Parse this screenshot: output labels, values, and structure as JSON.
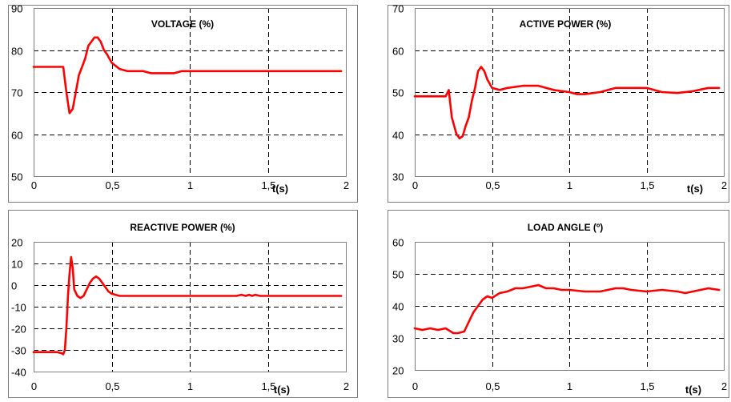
{
  "chart_data": [
    {
      "type": "line",
      "title": "VOLTAGE (%)",
      "xlabel": "t(s)",
      "ylabel": "",
      "xlim": [
        0,
        2
      ],
      "ylim": [
        50,
        90
      ],
      "xticks": [
        "0",
        "0,5",
        "1",
        "1,5",
        "2"
      ],
      "yticks": [
        "50",
        "60",
        "70",
        "80",
        "90"
      ],
      "grid": true,
      "series": [
        {
          "color": "#ff0000",
          "x": [
            0,
            0.19,
            0.21,
            0.23,
            0.25,
            0.27,
            0.29,
            0.31,
            0.33,
            0.35,
            0.37,
            0.39,
            0.41,
            0.43,
            0.45,
            0.47,
            0.5,
            0.55,
            0.6,
            0.65,
            0.7,
            0.75,
            0.8,
            0.85,
            0.9,
            0.95,
            1.0,
            1.5,
            1.97
          ],
          "y": [
            76,
            76,
            70,
            65,
            66,
            70,
            74,
            76,
            78,
            81,
            82,
            83,
            83,
            82,
            80,
            79,
            77,
            75.5,
            75,
            75,
            75,
            74.5,
            74.5,
            74.5,
            74.5,
            75,
            75,
            75,
            75
          ]
        }
      ]
    },
    {
      "type": "line",
      "title": "ACTIVE POWER (%)",
      "xlabel": "t(s)",
      "ylabel": "",
      "xlim": [
        0,
        2
      ],
      "ylim": [
        30,
        70
      ],
      "xticks": [
        "0",
        "0,5",
        "1",
        "1,5",
        "2"
      ],
      "yticks": [
        "30",
        "40",
        "50",
        "60",
        "70"
      ],
      "grid": true,
      "series": [
        {
          "color": "#ff0000",
          "x": [
            0,
            0.2,
            0.22,
            0.24,
            0.27,
            0.29,
            0.31,
            0.33,
            0.35,
            0.37,
            0.39,
            0.41,
            0.43,
            0.45,
            0.47,
            0.5,
            0.55,
            0.6,
            0.7,
            0.8,
            0.9,
            1.0,
            1.05,
            1.1,
            1.2,
            1.3,
            1.4,
            1.5,
            1.6,
            1.7,
            1.8,
            1.9,
            1.97
          ],
          "y": [
            49,
            49,
            50.5,
            44,
            40,
            39,
            39.5,
            42,
            44,
            48,
            51,
            55,
            56,
            55,
            53,
            51,
            50.5,
            51,
            51.5,
            51.5,
            50.5,
            50,
            49.5,
            49.5,
            50,
            51,
            51,
            51,
            50,
            49.8,
            50.2,
            51,
            51
          ]
        }
      ]
    },
    {
      "type": "line",
      "title": "REACTIVE POWER (%)",
      "xlabel": "t(s)",
      "ylabel": "",
      "xlim": [
        0,
        2
      ],
      "ylim": [
        -40,
        20
      ],
      "xticks": [
        "0",
        "0,5",
        "1",
        "1,5",
        "2"
      ],
      "yticks": [
        "-40",
        "-30",
        "-20",
        "-10",
        "0",
        "10",
        "20"
      ],
      "grid": true,
      "series": [
        {
          "color": "#ff0000",
          "x": [
            0,
            0.15,
            0.18,
            0.19,
            0.2,
            0.21,
            0.22,
            0.23,
            0.24,
            0.25,
            0.26,
            0.28,
            0.3,
            0.32,
            0.34,
            0.36,
            0.38,
            0.4,
            0.42,
            0.44,
            0.46,
            0.48,
            0.5,
            0.55,
            0.6,
            0.65,
            1.0,
            1.3,
            1.33,
            1.36,
            1.38,
            1.4,
            1.42,
            1.45,
            1.97
          ],
          "y": [
            -31,
            -31,
            -31.5,
            -32,
            -30,
            -20,
            -5,
            5,
            13,
            8,
            -2,
            -5,
            -6,
            -5,
            -2,
            1,
            3,
            4,
            3,
            1,
            -1,
            -3,
            -4,
            -5,
            -5,
            -5,
            -5,
            -5,
            -4.5,
            -5,
            -4.5,
            -5,
            -4.5,
            -5,
            -5
          ]
        }
      ]
    },
    {
      "type": "line",
      "title": "LOAD ANGLE (º)",
      "xlabel": "t(s)",
      "ylabel": "",
      "xlim": [
        0,
        2
      ],
      "ylim": [
        20,
        60
      ],
      "xticks": [
        "0",
        "0,5",
        "1",
        "1,5",
        "2"
      ],
      "yticks": [
        "20",
        "30",
        "40",
        "50",
        "60"
      ],
      "grid": true,
      "series": [
        {
          "color": "#ff0000",
          "x": [
            0,
            0.05,
            0.1,
            0.15,
            0.2,
            0.25,
            0.28,
            0.32,
            0.35,
            0.38,
            0.41,
            0.44,
            0.47,
            0.5,
            0.55,
            0.6,
            0.65,
            0.7,
            0.75,
            0.8,
            0.85,
            0.9,
            0.95,
            1.0,
            1.1,
            1.2,
            1.3,
            1.35,
            1.4,
            1.5,
            1.6,
            1.7,
            1.75,
            1.8,
            1.85,
            1.9,
            1.97
          ],
          "y": [
            33,
            32.5,
            33,
            32.5,
            33,
            31.5,
            31.5,
            32,
            35,
            38,
            40,
            42,
            43,
            42.5,
            44,
            44.5,
            45.5,
            45.5,
            46,
            46.5,
            45.5,
            45.5,
            45,
            45,
            44.5,
            44.5,
            45.5,
            45.5,
            45,
            44.5,
            45,
            44.5,
            44,
            44.5,
            45,
            45.5,
            45
          ]
        }
      ]
    }
  ]
}
